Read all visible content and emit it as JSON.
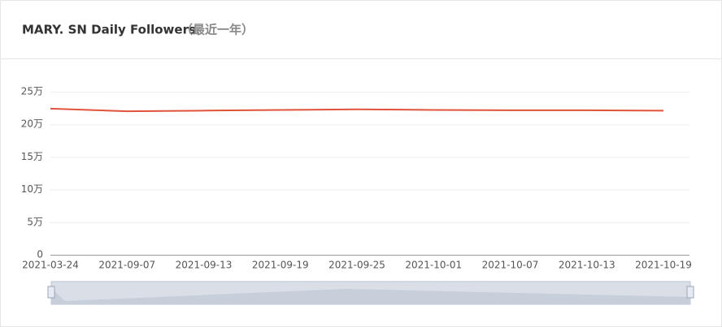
{
  "chart_data": {
    "type": "line",
    "title": "MARY. SN Daily Followers",
    "subtitle": "（最近一年）",
    "categories": [
      "2021-03-24",
      "2021-09-07",
      "2021-09-13",
      "2021-09-19",
      "2021-09-25",
      "2021-10-01",
      "2021-10-07",
      "2021-10-13",
      "2021-10-19"
    ],
    "series": [
      {
        "color": "#e0533a",
        "values": [
          224000,
          220000,
          221000,
          222000,
          223000,
          222000,
          221500,
          221500,
          221000
        ]
      }
    ],
    "ylim": [
      0,
      250000
    ],
    "yticks": [
      0,
      {
        "value": 50000,
        "label": "5万"
      },
      {
        "value": 100000,
        "label": "10万"
      },
      {
        "value": 150000,
        "label": "15万"
      },
      {
        "value": 200000,
        "label": "20万"
      },
      {
        "value": 250000,
        "label": "25万"
      }
    ],
    "grid": true
  }
}
